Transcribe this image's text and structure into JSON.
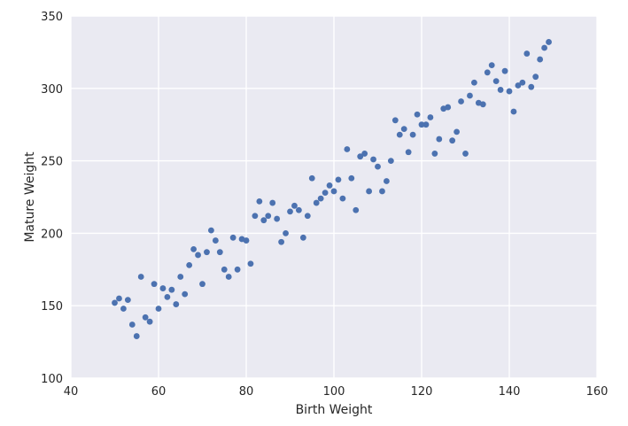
{
  "chart_data": {
    "type": "scatter",
    "title": "",
    "xlabel": "Birth Weight",
    "ylabel": "Mature Weight",
    "xlim": [
      40,
      160
    ],
    "ylim": [
      100,
      350
    ],
    "xticks": [
      40,
      60,
      80,
      100,
      120,
      140,
      160
    ],
    "yticks": [
      100,
      150,
      200,
      250,
      300,
      350
    ],
    "grid": true,
    "colors": {
      "background": "#EAEAF2",
      "grid": "#FFFFFF",
      "point": "#4C72B0"
    },
    "series": [
      {
        "points": [
          [
            50.0,
            152
          ],
          [
            51.0,
            155
          ],
          [
            52.0,
            148
          ],
          [
            53.0,
            154
          ],
          [
            54.0,
            137
          ],
          [
            55.0,
            129
          ],
          [
            56.0,
            170
          ],
          [
            57.0,
            142
          ],
          [
            58.0,
            139
          ],
          [
            59.0,
            165
          ],
          [
            60.0,
            148
          ],
          [
            61.0,
            162
          ],
          [
            62.0,
            156
          ],
          [
            63.0,
            161
          ],
          [
            64.0,
            151
          ],
          [
            65.0,
            170
          ],
          [
            66.0,
            158
          ],
          [
            67.0,
            178
          ],
          [
            68.0,
            189
          ],
          [
            69.0,
            185
          ],
          [
            70.0,
            165
          ],
          [
            71.0,
            187
          ],
          [
            72.0,
            202
          ],
          [
            73.0,
            195
          ],
          [
            74.0,
            187
          ],
          [
            75.0,
            175
          ],
          [
            76.0,
            170
          ],
          [
            77.0,
            197
          ],
          [
            78.0,
            175
          ],
          [
            79.0,
            196
          ],
          [
            80.0,
            195
          ],
          [
            81.0,
            179
          ],
          [
            82.0,
            212
          ],
          [
            83.0,
            222
          ],
          [
            84.0,
            209
          ],
          [
            85.0,
            212
          ],
          [
            86.0,
            221
          ],
          [
            87.0,
            210
          ],
          [
            88.0,
            194
          ],
          [
            89.0,
            200
          ],
          [
            90.0,
            215
          ],
          [
            91.0,
            219
          ],
          [
            92.0,
            216
          ],
          [
            93.0,
            197
          ],
          [
            94.0,
            212
          ],
          [
            95.0,
            238
          ],
          [
            96.0,
            221
          ],
          [
            97.0,
            224
          ],
          [
            98.0,
            228
          ],
          [
            99.0,
            233
          ],
          [
            100.0,
            229
          ],
          [
            101.0,
            237
          ],
          [
            102.0,
            224
          ],
          [
            103.0,
            258
          ],
          [
            104.0,
            238
          ],
          [
            105.0,
            216
          ],
          [
            106.0,
            253
          ],
          [
            107.0,
            255
          ],
          [
            108.0,
            229
          ],
          [
            109.0,
            251
          ],
          [
            110.0,
            246
          ],
          [
            111.0,
            229
          ],
          [
            112.0,
            236
          ],
          [
            113.0,
            250
          ],
          [
            114.0,
            278
          ],
          [
            115.0,
            268
          ],
          [
            116.0,
            272
          ],
          [
            117.0,
            256
          ],
          [
            118.0,
            268
          ],
          [
            119.0,
            282
          ],
          [
            120.0,
            275
          ],
          [
            121.0,
            275
          ],
          [
            122.0,
            280
          ],
          [
            123.0,
            255
          ],
          [
            124.0,
            265
          ],
          [
            125.0,
            286
          ],
          [
            126.0,
            287
          ],
          [
            127.0,
            264
          ],
          [
            128.0,
            270
          ],
          [
            129.0,
            291
          ],
          [
            130.0,
            255
          ],
          [
            131.0,
            295
          ],
          [
            132.0,
            304
          ],
          [
            133.0,
            290
          ],
          [
            134.0,
            289
          ],
          [
            135.0,
            311
          ],
          [
            136.0,
            316
          ],
          [
            137.0,
            305
          ],
          [
            138.0,
            299
          ],
          [
            139.0,
            312
          ],
          [
            140.0,
            298
          ],
          [
            141.0,
            284
          ],
          [
            142.0,
            302
          ],
          [
            143.0,
            304
          ],
          [
            144.0,
            324
          ],
          [
            145.0,
            301
          ],
          [
            146.0,
            308
          ],
          [
            147.0,
            320
          ],
          [
            148.0,
            328
          ],
          [
            149.0,
            332
          ]
        ]
      }
    ]
  }
}
